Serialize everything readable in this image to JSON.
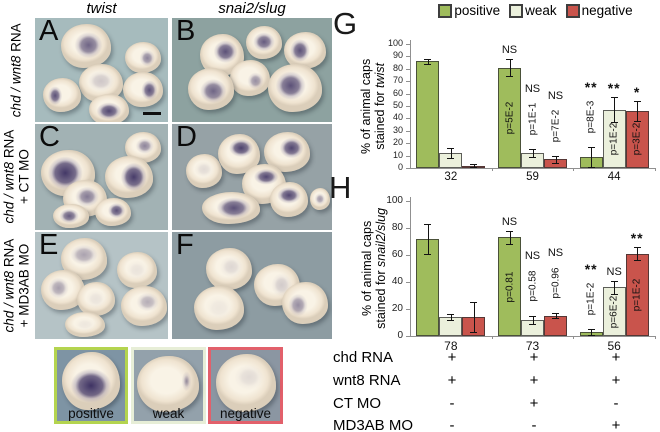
{
  "figure": {
    "col_headers": [
      "twist",
      "snai2/slug"
    ],
    "row_labels": [
      {
        "gene": "chd / wnt8",
        "suffix": " RNA",
        "line2": ""
      },
      {
        "gene": "chd / wnt8",
        "suffix": " RNA",
        "line2": "+ CT MO"
      },
      {
        "gene": "chd / wnt8",
        "suffix": " RNA",
        "line2": "+ MD3AB MO"
      }
    ],
    "panel_letters": [
      "A",
      "B",
      "C",
      "D",
      "E",
      "F"
    ],
    "chart_letters": [
      "G",
      "H"
    ],
    "examples": [
      {
        "label": "positive",
        "border_color": "#b4d44f"
      },
      {
        "label": "weak",
        "border_color": "#e7eed7"
      },
      {
        "label": "negative",
        "border_color": "#e2606b"
      }
    ]
  },
  "legend": {
    "items": [
      {
        "label": "positive",
        "color": "#9fbc5c"
      },
      {
        "label": "weak",
        "color": "#ebf0dc"
      },
      {
        "label": "negative",
        "color": "#c9544c"
      }
    ]
  },
  "chart_data": [
    {
      "type": "bar",
      "panel": "G",
      "ylabel_line1": "% of animal caps",
      "ylabel_line2_prefix": "stained for ",
      "ylabel_line2_italic": "twist",
      "ylim": [
        0,
        100
      ],
      "ytick_step": 10,
      "grid": false,
      "legend_position": "top",
      "categories": [
        "32",
        "59",
        "44"
      ],
      "series": [
        {
          "name": "positive",
          "color": "#9fbc5c",
          "values": [
            86,
            81,
            9
          ],
          "errors": [
            2,
            7,
            8
          ],
          "sig": [
            "",
            "NS",
            "**"
          ],
          "p": [
            "",
            "p=5E-2",
            "p=8E-3"
          ]
        },
        {
          "name": "weak",
          "color": "#ebf0dc",
          "values": [
            12,
            12,
            47
          ],
          "errors": [
            4,
            3,
            10
          ],
          "sig": [
            "",
            "NS",
            "**"
          ],
          "p": [
            "",
            "p=1E-1",
            "p=1E-2"
          ]
        },
        {
          "name": "negative",
          "color": "#c9544c",
          "values": [
            2,
            7,
            46
          ],
          "errors": [
            1,
            3,
            8
          ],
          "sig": [
            "",
            "NS",
            "*"
          ],
          "p": [
            "",
            "p=7E-2",
            "p=3E-2"
          ]
        }
      ]
    },
    {
      "type": "bar",
      "panel": "H",
      "ylabel_line1": "% of animal caps",
      "ylabel_line2_prefix": "stained for ",
      "ylabel_line2_italic": "snail2/slug",
      "ylim": [
        0,
        100
      ],
      "ytick_step": 20,
      "grid": false,
      "categories": [
        "78",
        "73",
        "56"
      ],
      "series": [
        {
          "name": "positive",
          "color": "#9fbc5c",
          "values": [
            72,
            73,
            3
          ],
          "errors": [
            11,
            5,
            2
          ],
          "sig": [
            "",
            "NS",
            "**"
          ],
          "p": [
            "",
            "p=0.81",
            "p=1E-2"
          ]
        },
        {
          "name": "weak",
          "color": "#ebf0dc",
          "values": [
            14,
            12,
            36
          ],
          "errors": [
            2,
            3,
            5
          ],
          "sig": [
            "",
            "NS",
            "NS"
          ],
          "p": [
            "",
            "p=0.58",
            "p=6E-2"
          ]
        },
        {
          "name": "negative",
          "color": "#c9544c",
          "values": [
            14,
            15,
            61
          ],
          "errors": [
            11,
            2,
            5
          ],
          "sig": [
            "",
            "NS",
            "**"
          ],
          "p": [
            "",
            "p=0.96",
            "p=1E-2"
          ]
        }
      ]
    }
  ],
  "table": {
    "rows": [
      {
        "label": "chd RNA",
        "values": [
          "+",
          "+",
          "+"
        ]
      },
      {
        "label": "wnt8 RNA",
        "values": [
          "+",
          "+",
          "+"
        ]
      },
      {
        "label": "CT MO",
        "values": [
          "-",
          "+",
          "-"
        ]
      },
      {
        "label": "MD3AB MO",
        "values": [
          "-",
          "-",
          "+"
        ]
      }
    ]
  }
}
